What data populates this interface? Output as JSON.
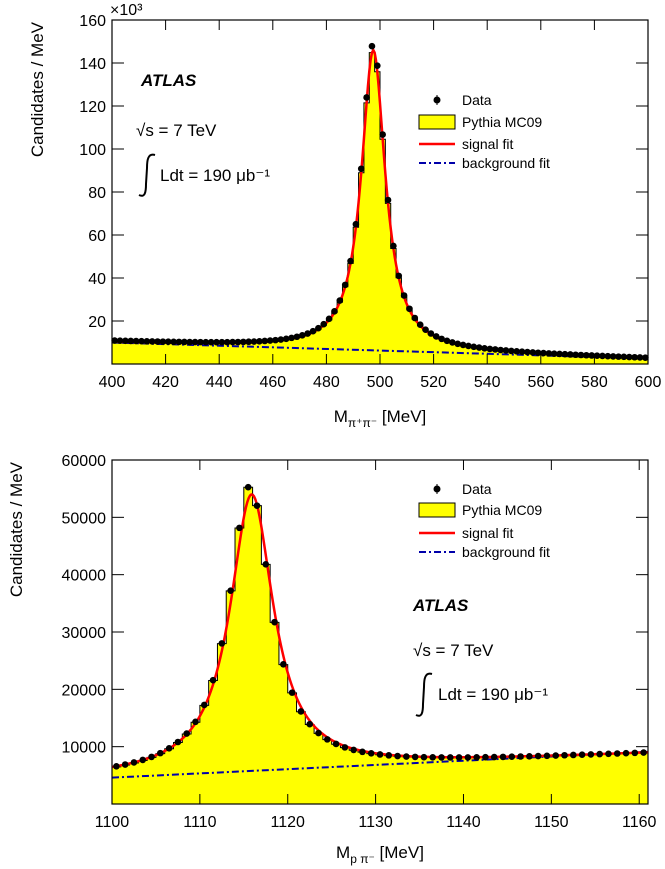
{
  "colors": {
    "mc_fill": "#ffff00",
    "signal_fit": "#ff0000",
    "background_fit": "#0000aa",
    "data": "#000000"
  },
  "chart_data": [
    {
      "type": "line",
      "scale_note": "×10³",
      "xlabel_main": "M",
      "xlabel_sub": "π⁺π⁻",
      "xlabel_unit": " [MeV]",
      "ylabel": "Candidates / MeV",
      "xlim": [
        400,
        600
      ],
      "ylim": [
        0,
        160
      ],
      "xticks": [
        400,
        420,
        440,
        460,
        480,
        500,
        520,
        540,
        560,
        580,
        600
      ],
      "yticks": [
        20,
        40,
        60,
        80,
        100,
        120,
        140,
        160
      ],
      "legend": [
        "Data",
        "Pythia MC09",
        "signal fit",
        "background fit"
      ],
      "legend_placement": "top-right",
      "annotations": {
        "experiment": "ATLAS",
        "energy": "√s = 7 TeV",
        "lumi": "Ldt = 190 μb⁻¹"
      },
      "series": [
        {
          "name": "Data",
          "kind": "points",
          "peak_x": 497.5,
          "peak_y": 149,
          "gamma": 5.4,
          "bkg": [
            400,
            10.5,
            600,
            2.5
          ]
        },
        {
          "name": "Pythia MC09",
          "kind": "histogram",
          "peak_x": 497.5,
          "peak_y": 146,
          "gamma": 5.4,
          "bkg": [
            400,
            10,
            600,
            2.5
          ]
        },
        {
          "name": "signal fit",
          "kind": "line",
          "peak_x": 497.5,
          "peak_y": 146,
          "gamma": 5.4,
          "bkg": [
            400,
            10,
            600,
            2.5
          ]
        },
        {
          "name": "background fit",
          "kind": "dashdot",
          "bkg": [
            400,
            10,
            600,
            2.5
          ]
        }
      ]
    },
    {
      "type": "line",
      "xlabel_main": "M",
      "xlabel_sub": "p π⁻",
      "xlabel_unit": " [MeV]",
      "ylabel": "Candidates / MeV",
      "xlim": [
        1100,
        1161
      ],
      "ylim": [
        0,
        60000
      ],
      "xticks": [
        1100,
        1110,
        1120,
        1130,
        1140,
        1150,
        1160
      ],
      "yticks": [
        10000,
        20000,
        30000,
        40000,
        50000,
        60000
      ],
      "legend": [
        "Data",
        "Pythia MC09",
        "signal fit",
        "background fit"
      ],
      "legend_placement": "top-right",
      "annotations": {
        "experiment": "ATLAS",
        "energy": "√s = 7 TeV",
        "lumi": "Ldt = 190 μb⁻¹"
      },
      "series": [
        {
          "name": "Data",
          "kind": "points",
          "peak_x": 1115.7,
          "peak_y": 55500,
          "gamma": 2.9,
          "bkg": [
            1100,
            4800,
            1161,
            8800
          ]
        },
        {
          "name": "Pythia MC09",
          "kind": "histogram",
          "peak_x": 1115.7,
          "peak_y": 55500,
          "gamma": 2.9,
          "bkg": [
            1100,
            4700,
            1161,
            8800
          ]
        },
        {
          "name": "signal fit",
          "kind": "line",
          "peak_x": 1115.9,
          "peak_y": 54000,
          "gamma": 3.0,
          "bkg": [
            1100,
            4800,
            1161,
            8800
          ]
        },
        {
          "name": "background fit",
          "kind": "dashdot",
          "bkg": [
            1100,
            4600,
            1161,
            9100
          ]
        }
      ]
    }
  ]
}
